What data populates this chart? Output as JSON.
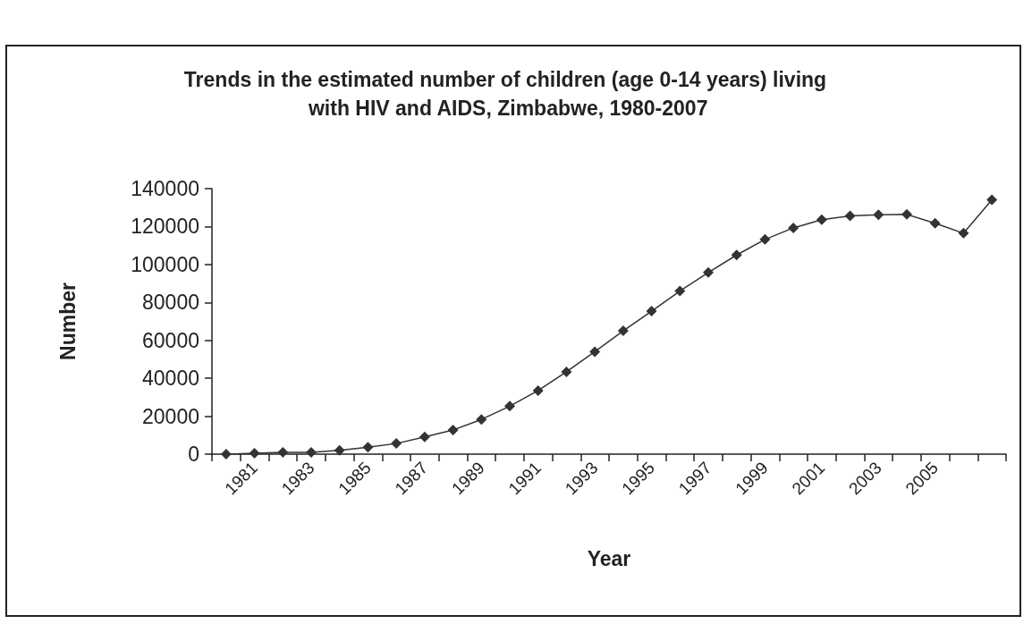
{
  "chart_data": {
    "type": "line",
    "title": "Trends in the estimated number of children (age 0-14 years) living with HIV and AIDS, Zimbabwe, 1980-2007",
    "xlabel": "Year",
    "ylabel": "Number",
    "categories": [
      null,
      "1981",
      null,
      "1983",
      null,
      "1985",
      null,
      "1987",
      null,
      "1989",
      null,
      "1991",
      null,
      "1993",
      null,
      "1995",
      null,
      "1997",
      null,
      "1999",
      null,
      "2001",
      null,
      "2003",
      null,
      "2005",
      null,
      null
    ],
    "series": [
      {
        "color": "#333333",
        "values": [
          0,
          500,
          1000,
          1000,
          2000,
          3700,
          5600,
          9100,
          12700,
          18300,
          25300,
          33500,
          43400,
          54000,
          65000,
          75400,
          86000,
          95800,
          105000,
          113200,
          119300,
          123600,
          125600,
          126200,
          126400,
          121700,
          116500,
          134100
        ]
      }
    ],
    "ylim": [
      0,
      140000
    ],
    "yticks": [
      0,
      20000,
      40000,
      60000,
      80000,
      100000,
      120000,
      140000
    ],
    "marker": "diamond",
    "line_style": "solid"
  }
}
